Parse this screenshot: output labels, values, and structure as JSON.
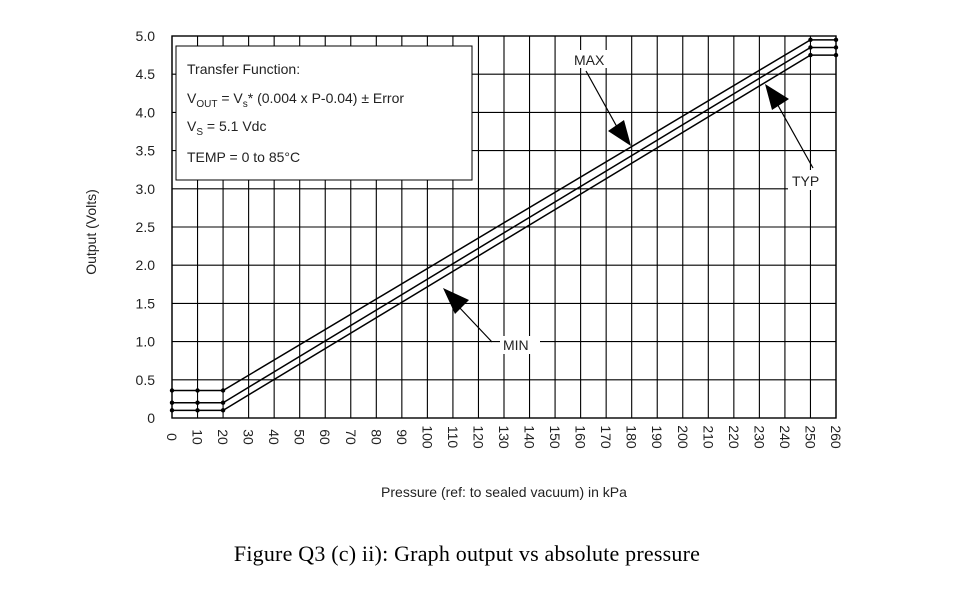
{
  "chart_data": {
    "type": "line",
    "xlabel": "Pressure (ref: to sealed vacuum) in kPa",
    "ylabel": "Output (Volts)",
    "xlim": [
      0,
      260
    ],
    "ylim": [
      0,
      5.0
    ],
    "grid": true,
    "xticks": [
      0,
      10,
      20,
      30,
      40,
      50,
      60,
      70,
      80,
      90,
      100,
      110,
      120,
      130,
      140,
      150,
      160,
      170,
      180,
      190,
      200,
      210,
      220,
      230,
      240,
      250,
      260
    ],
    "x_tick_labels": [
      "0",
      "10",
      "20",
      "30",
      "40",
      "50",
      "60",
      "70",
      "80",
      "90",
      "100",
      "110",
      "120",
      "130",
      "140",
      "150",
      "160",
      "170",
      "180",
      "190",
      "200",
      "210",
      "220",
      "230",
      "240",
      "250",
      "260"
    ],
    "yticks": [
      0,
      0.5,
      1.0,
      1.5,
      2.0,
      2.5,
      3.0,
      3.5,
      4.0,
      4.5,
      5.0
    ],
    "y_tick_labels": [
      "0",
      "0.5",
      "1.0",
      "1.5",
      "2.0",
      "2.5",
      "3.0",
      "3.5",
      "4.0",
      "4.5",
      "5.0"
    ],
    "series": [
      {
        "name": "MAX",
        "x": [
          0,
          20,
          250,
          260
        ],
        "y": [
          0.36,
          0.36,
          4.95,
          4.95
        ]
      },
      {
        "name": "TYP",
        "x": [
          0,
          20,
          250,
          260
        ],
        "y": [
          0.2,
          0.2,
          4.85,
          4.85
        ]
      },
      {
        "name": "MIN",
        "x": [
          0,
          20,
          250,
          260
        ],
        "y": [
          0.1,
          0.1,
          4.75,
          4.75
        ]
      }
    ],
    "annotations": {
      "transfer_title": "Transfer Function:",
      "vout_v": "V",
      "vout_sub": "OUT",
      "vout_mid": " = V",
      "vout_sub2": "s",
      "vout_rest": "* (0.004 x P-0.04) ± Error",
      "vs_v": "V",
      "vs_sub": "S",
      "vs_rest": " = 5.1 Vdc",
      "temp": "TEMP = 0 to 85°C",
      "max_label": "MAX",
      "typ_label": "TYP",
      "min_label": "MIN"
    }
  },
  "caption": "Figure  Q3 (c) ii):  Graph output vs absolute  pressure"
}
